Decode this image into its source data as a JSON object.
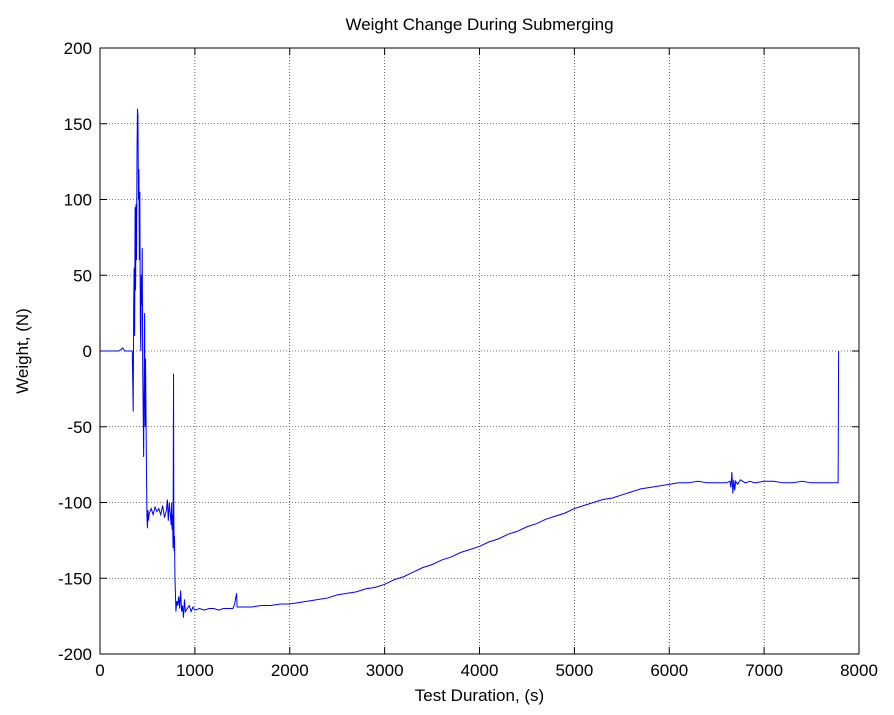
{
  "chart_data": {
    "type": "line",
    "title": "Weight Change During Submerging",
    "xlabel": "Test Duration, (s)",
    "ylabel": "Weight, (N)",
    "xlim": [
      0,
      8000
    ],
    "ylim": [
      -200,
      200
    ],
    "x_ticks": [
      0,
      1000,
      2000,
      3000,
      4000,
      5000,
      6000,
      7000,
      8000
    ],
    "y_ticks": [
      200,
      150,
      100,
      50,
      0,
      -50,
      -100,
      -150,
      -200
    ],
    "x_tick_labels": [
      "0",
      "1000",
      "2000",
      "3000",
      "4000",
      "5000",
      "6000",
      "7000",
      "8000"
    ],
    "y_tick_labels": [
      "200",
      "150",
      "100",
      "50",
      "0",
      "-50",
      "-100",
      "-150",
      "-200"
    ],
    "grid": true,
    "line_color": "#0000ff",
    "series": [
      {
        "points": [
          [
            0,
            0
          ],
          [
            100,
            0
          ],
          [
            200,
            0
          ],
          [
            240,
            2
          ],
          [
            260,
            0
          ],
          [
            300,
            0
          ],
          [
            340,
            0
          ],
          [
            350,
            -40
          ],
          [
            355,
            30
          ],
          [
            360,
            55
          ],
          [
            365,
            10
          ],
          [
            370,
            95
          ],
          [
            375,
            40
          ],
          [
            380,
            97
          ],
          [
            385,
            60
          ],
          [
            390,
            130
          ],
          [
            395,
            160
          ],
          [
            400,
            155
          ],
          [
            405,
            100
          ],
          [
            410,
            120
          ],
          [
            415,
            60
          ],
          [
            420,
            105
          ],
          [
            425,
            20
          ],
          [
            430,
            0
          ],
          [
            435,
            50
          ],
          [
            440,
            30
          ],
          [
            445,
            68
          ],
          [
            450,
            -10
          ],
          [
            455,
            -40
          ],
          [
            460,
            -70
          ],
          [
            465,
            -20
          ],
          [
            470,
            25
          ],
          [
            475,
            -50
          ],
          [
            480,
            -5
          ],
          [
            485,
            -40
          ],
          [
            490,
            -80
          ],
          [
            495,
            -110
          ],
          [
            500,
            -117
          ],
          [
            505,
            -105
          ],
          [
            510,
            -112
          ],
          [
            520,
            -107
          ],
          [
            540,
            -104
          ],
          [
            560,
            -108
          ],
          [
            580,
            -103
          ],
          [
            600,
            -106
          ],
          [
            620,
            -104
          ],
          [
            640,
            -108
          ],
          [
            660,
            -102
          ],
          [
            680,
            -110
          ],
          [
            700,
            -105
          ],
          [
            710,
            -98
          ],
          [
            720,
            -112
          ],
          [
            730,
            -100
          ],
          [
            740,
            -107
          ],
          [
            750,
            -115
          ],
          [
            755,
            -100
          ],
          [
            760,
            -118
          ],
          [
            765,
            -108
          ],
          [
            770,
            -130
          ],
          [
            775,
            -15
          ],
          [
            778,
            -110
          ],
          [
            782,
            -132
          ],
          [
            785,
            -122
          ],
          [
            790,
            -150
          ],
          [
            795,
            -160
          ],
          [
            800,
            -172
          ],
          [
            810,
            -165
          ],
          [
            820,
            -168
          ],
          [
            830,
            -162
          ],
          [
            840,
            -170
          ],
          [
            850,
            -158
          ],
          [
            860,
            -172
          ],
          [
            870,
            -168
          ],
          [
            880,
            -176
          ],
          [
            890,
            -164
          ],
          [
            900,
            -172
          ],
          [
            920,
            -170
          ],
          [
            940,
            -168
          ],
          [
            960,
            -172
          ],
          [
            980,
            -169
          ],
          [
            1000,
            -171
          ],
          [
            1050,
            -170
          ],
          [
            1100,
            -171
          ],
          [
            1150,
            -170
          ],
          [
            1200,
            -170
          ],
          [
            1250,
            -171
          ],
          [
            1300,
            -170
          ],
          [
            1350,
            -170
          ],
          [
            1400,
            -170
          ],
          [
            1420,
            -167
          ],
          [
            1430,
            -163
          ],
          [
            1440,
            -160
          ],
          [
            1445,
            -169
          ],
          [
            1460,
            -169
          ],
          [
            1500,
            -169
          ],
          [
            1600,
            -169
          ],
          [
            1700,
            -168
          ],
          [
            1800,
            -168
          ],
          [
            1900,
            -167
          ],
          [
            2000,
            -167
          ],
          [
            2100,
            -166
          ],
          [
            2200,
            -165
          ],
          [
            2300,
            -164
          ],
          [
            2400,
            -163
          ],
          [
            2500,
            -161
          ],
          [
            2600,
            -160
          ],
          [
            2700,
            -159
          ],
          [
            2800,
            -157
          ],
          [
            2900,
            -156
          ],
          [
            3000,
            -154
          ],
          [
            3100,
            -151
          ],
          [
            3200,
            -149
          ],
          [
            3300,
            -146
          ],
          [
            3400,
            -143
          ],
          [
            3500,
            -141
          ],
          [
            3600,
            -138
          ],
          [
            3700,
            -136
          ],
          [
            3800,
            -133
          ],
          [
            3900,
            -131
          ],
          [
            4000,
            -129
          ],
          [
            4100,
            -126
          ],
          [
            4200,
            -124
          ],
          [
            4300,
            -121
          ],
          [
            4400,
            -119
          ],
          [
            4500,
            -116
          ],
          [
            4600,
            -114
          ],
          [
            4700,
            -111
          ],
          [
            4800,
            -109
          ],
          [
            4900,
            -107
          ],
          [
            5000,
            -104
          ],
          [
            5100,
            -102
          ],
          [
            5200,
            -100
          ],
          [
            5300,
            -98
          ],
          [
            5400,
            -97
          ],
          [
            5500,
            -95
          ],
          [
            5600,
            -93
          ],
          [
            5700,
            -91
          ],
          [
            5800,
            -90
          ],
          [
            5900,
            -89
          ],
          [
            6000,
            -88
          ],
          [
            6100,
            -87
          ],
          [
            6200,
            -87
          ],
          [
            6300,
            -86
          ],
          [
            6400,
            -87
          ],
          [
            6500,
            -87
          ],
          [
            6600,
            -87
          ],
          [
            6640,
            -86
          ],
          [
            6650,
            -90
          ],
          [
            6660,
            -80
          ],
          [
            6670,
            -94
          ],
          [
            6680,
            -85
          ],
          [
            6690,
            -92
          ],
          [
            6700,
            -86
          ],
          [
            6720,
            -88
          ],
          [
            6750,
            -85
          ],
          [
            6800,
            -87
          ],
          [
            6850,
            -86
          ],
          [
            6900,
            -87
          ],
          [
            7000,
            -86
          ],
          [
            7100,
            -86
          ],
          [
            7200,
            -87
          ],
          [
            7300,
            -87
          ],
          [
            7400,
            -86
          ],
          [
            7500,
            -87
          ],
          [
            7600,
            -87
          ],
          [
            7700,
            -87
          ],
          [
            7780,
            -87
          ],
          [
            7785,
            0
          ]
        ]
      }
    ]
  }
}
